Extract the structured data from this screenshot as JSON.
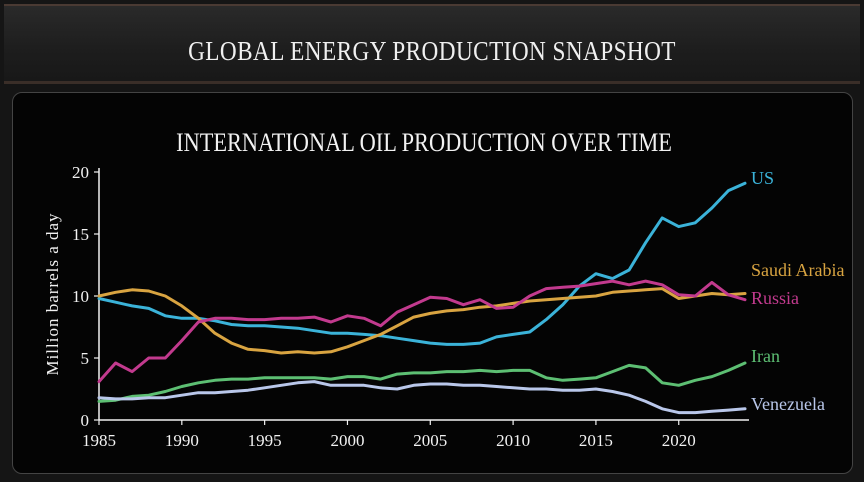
{
  "banner": {
    "title": "GLOBAL ENERGY PRODUCTION SNAPSHOT"
  },
  "chart_data": {
    "type": "line",
    "title": "INTERNATIONAL OIL PRODUCTION OVER TIME",
    "xlabel": "",
    "ylabel": "Million barrels a day",
    "xlim": [
      1985,
      2024
    ],
    "ylim": [
      0,
      20
    ],
    "xticks": [
      1985,
      1990,
      1995,
      2000,
      2005,
      2010,
      2015,
      2020
    ],
    "yticks": [
      0,
      5,
      10,
      15,
      20
    ],
    "grid": false,
    "legend": "end-of-line labels",
    "x": [
      1985,
      1986,
      1987,
      1988,
      1989,
      1990,
      1991,
      1992,
      1993,
      1994,
      1995,
      1996,
      1997,
      1998,
      1999,
      2000,
      2001,
      2002,
      2003,
      2004,
      2005,
      2006,
      2007,
      2008,
      2009,
      2010,
      2011,
      2012,
      2013,
      2014,
      2015,
      2016,
      2017,
      2018,
      2019,
      2020,
      2021,
      2022,
      2023,
      2024
    ],
    "series": [
      {
        "name": "US",
        "color": "#3bb3d9",
        "values": [
          9.8,
          9.5,
          9.2,
          9.0,
          8.4,
          8.2,
          8.2,
          8.0,
          7.7,
          7.6,
          7.6,
          7.5,
          7.4,
          7.2,
          7.0,
          7.0,
          6.9,
          6.8,
          6.6,
          6.4,
          6.2,
          6.1,
          6.1,
          6.2,
          6.7,
          6.9,
          7.1,
          8.1,
          9.3,
          10.8,
          11.8,
          11.4,
          12.1,
          14.3,
          16.3,
          15.6,
          15.9,
          17.1,
          18.5,
          19.1
        ]
      },
      {
        "name": "Saudi Arabia",
        "color": "#d9a441",
        "values": [
          10.0,
          10.3,
          10.5,
          10.4,
          10.0,
          9.2,
          8.2,
          7.0,
          6.2,
          5.7,
          5.6,
          5.4,
          5.5,
          5.4,
          5.5,
          5.9,
          6.4,
          6.9,
          7.6,
          8.3,
          8.6,
          8.8,
          8.9,
          9.1,
          9.2,
          9.4,
          9.6,
          9.7,
          9.8,
          9.9,
          10.0,
          10.3,
          10.4,
          10.5,
          10.6,
          9.8,
          10.0,
          10.2,
          10.1,
          10.2
        ]
      },
      {
        "name": "Russia",
        "color": "#c23a8e",
        "values": [
          3.1,
          4.6,
          3.9,
          5.0,
          5.0,
          6.4,
          7.9,
          8.2,
          8.2,
          8.1,
          8.1,
          8.2,
          8.2,
          8.3,
          7.9,
          8.4,
          8.2,
          7.6,
          8.7,
          9.3,
          9.9,
          9.8,
          9.3,
          9.7,
          9.0,
          9.1,
          10.0,
          10.6,
          10.7,
          10.8,
          11.0,
          11.2,
          10.9,
          11.2,
          10.9,
          10.1,
          10.0,
          11.1,
          10.1,
          9.7
        ]
      },
      {
        "name": "Iran",
        "color": "#5dbf73",
        "values": [
          1.5,
          1.6,
          1.9,
          2.0,
          2.3,
          2.7,
          3.0,
          3.2,
          3.3,
          3.3,
          3.4,
          3.4,
          3.4,
          3.4,
          3.3,
          3.5,
          3.5,
          3.3,
          3.7,
          3.8,
          3.8,
          3.9,
          3.9,
          4.0,
          3.9,
          4.0,
          4.0,
          3.4,
          3.2,
          3.3,
          3.4,
          3.9,
          4.4,
          4.2,
          3.0,
          2.8,
          3.2,
          3.5,
          4.0,
          4.6
        ]
      },
      {
        "name": "Venezuela",
        "color": "#b9c7ea",
        "values": [
          1.8,
          1.7,
          1.7,
          1.8,
          1.8,
          2.0,
          2.2,
          2.2,
          2.3,
          2.4,
          2.6,
          2.8,
          3.0,
          3.1,
          2.8,
          2.8,
          2.8,
          2.6,
          2.5,
          2.8,
          2.9,
          2.9,
          2.8,
          2.8,
          2.7,
          2.6,
          2.5,
          2.5,
          2.4,
          2.4,
          2.5,
          2.3,
          2.0,
          1.5,
          0.9,
          0.6,
          0.6,
          0.7,
          0.8,
          0.9
        ]
      }
    ]
  }
}
